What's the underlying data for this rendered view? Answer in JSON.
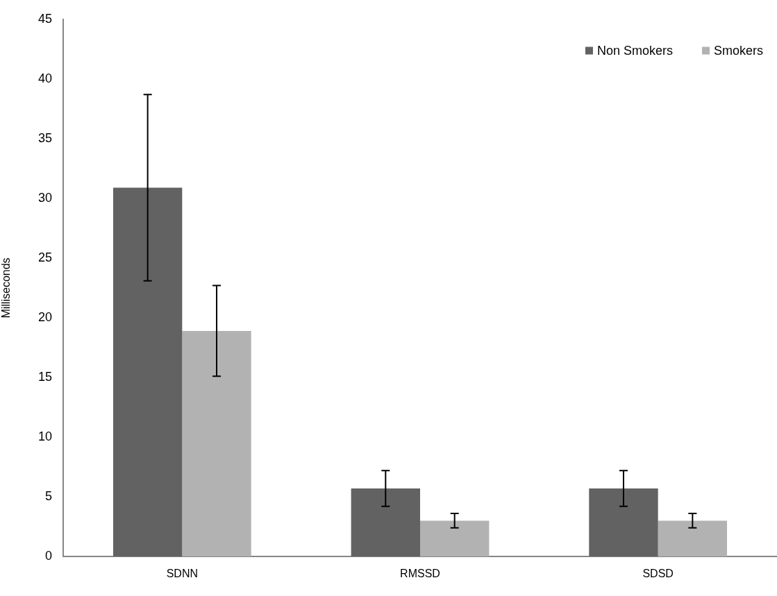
{
  "chart_data": {
    "type": "bar",
    "ylabel": "Milliseconds",
    "categories": [
      "SDNN",
      "RMSSD",
      "SDSD"
    ],
    "series": [
      {
        "name": "Non Smokers",
        "color": "#626262",
        "values": [
          30.9,
          5.7,
          5.7
        ],
        "errors": [
          7.8,
          1.5,
          1.5
        ]
      },
      {
        "name": "Smokers",
        "color": "#b2b2b2",
        "values": [
          18.9,
          3.0,
          3.0
        ],
        "errors": [
          3.8,
          0.6,
          0.6
        ]
      }
    ],
    "ylim": [
      0,
      45
    ],
    "yticks": [
      0,
      5,
      10,
      15,
      20,
      25,
      30,
      35,
      40,
      45
    ],
    "grid": false,
    "legend": "top right"
  }
}
